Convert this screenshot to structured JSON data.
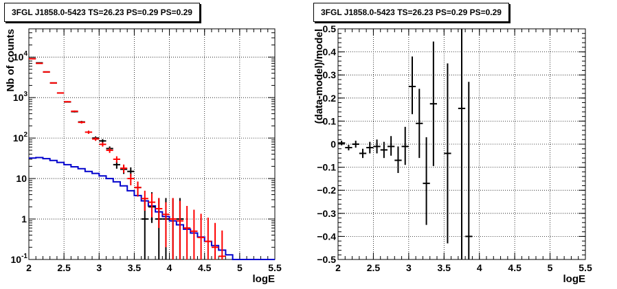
{
  "chart_data": [
    {
      "type": "line",
      "title": "3FGL J1858.0-5423 TS=26.23 PS=0.29 PS=0.29",
      "xlabel": "logE",
      "ylabel": "Nb of counts",
      "xlim": [
        2,
        5.5
      ],
      "ylim": [
        0.1,
        50000
      ],
      "yscale": "log",
      "grid": true,
      "x_ticks": [
        "2",
        "2.5",
        "3",
        "3.5",
        "4",
        "4.5",
        "5",
        "5.5"
      ],
      "y_ticks": [
        {
          "value": 0.1,
          "base": "10",
          "exp": "-1"
        },
        {
          "value": 1,
          "base": "1",
          "exp": ""
        },
        {
          "value": 10,
          "base": "10",
          "exp": ""
        },
        {
          "value": 100,
          "base": "10",
          "exp": "2"
        },
        {
          "value": 1000,
          "base": "10",
          "exp": "3"
        },
        {
          "value": 10000,
          "base": "10",
          "exp": "4"
        }
      ],
      "bin_width": 0.1,
      "series": [
        {
          "color": "#000000",
          "x": [
            2.05,
            2.15,
            2.25,
            2.35,
            2.45,
            2.55,
            2.65,
            2.75,
            2.85,
            2.95,
            3.05,
            3.15,
            3.25,
            3.35,
            3.45,
            3.55,
            3.65,
            3.75,
            3.85,
            3.95,
            4.05,
            4.15
          ],
          "y": [
            9200,
            7200,
            4300,
            2300,
            1300,
            780,
            450,
            250,
            140,
            100,
            85,
            55,
            22,
            17,
            15,
            6,
            1,
            2,
            1,
            1,
            1,
            1
          ],
          "yerr_low": [
            95,
            85,
            65,
            48,
            36,
            28,
            21,
            16,
            12,
            10,
            9,
            7,
            4.5,
            4,
            3.9,
            2.4,
            0.9,
            1.2,
            0.9,
            0.9,
            0.9,
            0.9
          ],
          "yerr_high": [
            95,
            85,
            65,
            48,
            36,
            28,
            21,
            16,
            12,
            10,
            9,
            7,
            4.5,
            4,
            3.9,
            2.4,
            2.3,
            2.6,
            2.3,
            2.3,
            2.3,
            2.3
          ]
        },
        {
          "color": "#ff0000",
          "x": [
            2.05,
            2.15,
            2.25,
            2.35,
            2.45,
            2.55,
            2.65,
            2.75,
            2.85,
            2.95,
            3.05,
            3.15,
            3.25,
            3.35,
            3.45,
            3.55,
            3.65,
            3.75,
            3.85,
            3.95,
            4.05,
            4.15,
            4.25,
            4.35,
            4.45,
            4.55,
            4.65,
            4.75
          ],
          "y": [
            9100,
            7000,
            4300,
            2300,
            1300,
            790,
            460,
            245,
            140,
            95,
            70,
            50,
            30,
            18,
            10,
            6,
            3.2,
            2.6,
            1.8,
            1.3,
            1,
            0.9,
            0.6,
            0.5,
            0.35,
            0.28,
            0.2,
            0.12
          ],
          "yerr_low": [
            95,
            84,
            66,
            48,
            36,
            28,
            21,
            16,
            12,
            9.7,
            8.4,
            7,
            5.5,
            4.2,
            3.2,
            2.4,
            1.6,
            1.5,
            1.2,
            1.1,
            0.9,
            0.85,
            0.5,
            0.4,
            0.25,
            0.18,
            0.1,
            0.02
          ],
          "yerr_high": [
            95,
            84,
            66,
            48,
            36,
            28,
            21,
            16,
            12,
            9.7,
            8.4,
            7,
            5.5,
            4.2,
            3.2,
            2.4,
            1.8,
            1.7,
            1.5,
            1.3,
            2.3,
            1.9,
            1.5,
            1.2,
            1,
            0.8,
            0.6,
            0.4
          ]
        },
        {
          "color": "#0000cc",
          "step": true,
          "edges": [
            2.0,
            2.1,
            2.2,
            2.3,
            2.4,
            2.5,
            2.6,
            2.7,
            2.8,
            2.9,
            3.0,
            3.1,
            3.2,
            3.3,
            3.4,
            3.5,
            3.6,
            3.7,
            3.8,
            3.9,
            4.0,
            4.1,
            4.2,
            4.3,
            4.4,
            4.5,
            4.6,
            4.7,
            4.8,
            4.9,
            5.0,
            5.1,
            5.2,
            5.3,
            5.4,
            5.5
          ],
          "y": [
            32,
            33,
            31,
            28,
            25,
            22,
            19.5,
            17.5,
            15,
            13.4,
            11.6,
            10,
            8.3,
            6.6,
            5,
            3.8,
            2.8,
            2.1,
            1.5,
            1.15,
            0.9,
            0.72,
            0.56,
            0.45,
            0.36,
            0.28,
            0.22,
            0.17,
            0.13,
            0.1,
            0.1,
            0.1,
            0.1,
            0.1,
            0.1
          ]
        }
      ]
    },
    {
      "type": "scatter",
      "title": "3FGL J1858.0-5423 TS=26.23 PS=0.29 PS=0.29",
      "xlabel": "logE",
      "ylabel": "(data-model)/model",
      "xlim": [
        2,
        5.5
      ],
      "ylim": [
        -0.5,
        0.5
      ],
      "grid": true,
      "x_ticks": [
        "2",
        "2.5",
        "3",
        "3.5",
        "4",
        "4.5",
        "5",
        "5.5"
      ],
      "y_ticks": [
        "−0.5",
        "−0.4",
        "−0.3",
        "−0.2",
        "−0.1",
        "0",
        "0.1",
        "0.2",
        "0.3",
        "0.4",
        "0.5"
      ],
      "y_tick_values": [
        -0.5,
        -0.4,
        -0.3,
        -0.2,
        -0.1,
        0,
        0.1,
        0.2,
        0.3,
        0.4,
        0.5
      ],
      "bin_width": 0.1,
      "series": [
        {
          "color": "#000000",
          "x": [
            2.05,
            2.15,
            2.25,
            2.35,
            2.45,
            2.55,
            2.65,
            2.75,
            2.85,
            2.95,
            3.05,
            3.15,
            3.25,
            3.35,
            3.55,
            3.75,
            3.85
          ],
          "y": [
            0.005,
            -0.015,
            0.0,
            -0.04,
            -0.015,
            -0.01,
            -0.025,
            -0.01,
            -0.07,
            -0.01,
            0.25,
            0.09,
            -0.17,
            0.175,
            -0.04,
            0.155,
            -0.4
          ],
          "yerr_low": [
            0.01,
            0.012,
            0.015,
            0.02,
            0.025,
            0.03,
            0.035,
            0.04,
            0.055,
            0.08,
            0.12,
            0.15,
            0.18,
            0.27,
            0.39,
            0.7,
            0.6
          ],
          "yerr_high": [
            0.01,
            0.012,
            0.015,
            0.02,
            0.025,
            0.03,
            0.035,
            0.045,
            0.06,
            0.085,
            0.13,
            0.15,
            0.2,
            0.27,
            0.39,
            0.7,
            0.67
          ]
        }
      ]
    }
  ]
}
